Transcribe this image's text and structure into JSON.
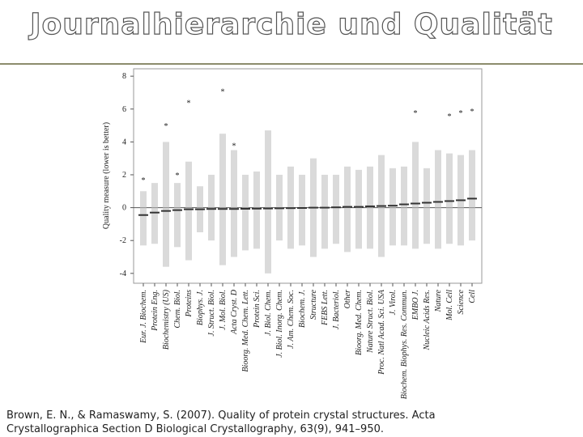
{
  "title": "Journalhierarchie und Qualität",
  "caption": [
    "Brown, E. N., & Ramaswamy, S. (2007). Quality of protein crystal structures. Acta",
    "Crystallographica Section D Biological Crystallography, 63(9), 941–950."
  ],
  "chart_data": {
    "type": "strip",
    "y_label": "Quality measure (lower is better)",
    "categories": [
      "Eur. J. Biochem.",
      "Protein Eng.",
      "Biochemistry (US)",
      "Chem. Biol.",
      "Proteins",
      "Biophys. J.",
      "J. Struct. Biol.",
      "J. Mol. Biol.",
      "Acta Cryst. D",
      "Bioorg. Med. Chem. Lett.",
      "Protein Sci.",
      "J. Biol. Chem.",
      "J. Biol. Inorg. Chem.",
      "J. Am. Chem. Soc.",
      "Biochem. J.",
      "Structure",
      "FEBS Lett.",
      "J. Bacteriol.",
      "Other",
      "Bioorg. Med. Chem.",
      "Nature Struct. Biol.",
      "Proc. Natl Acad. Sci. USA",
      "J. Virol.",
      "Biochem. Biophys. Res. Commun.",
      "EMBO J.",
      "Nucleic Acids Res.",
      "Nature",
      "Mol. Cell",
      "Science",
      "Cell"
    ],
    "values": [
      -0.45,
      -0.3,
      -0.2,
      -0.15,
      -0.1,
      -0.1,
      -0.08,
      -0.08,
      -0.08,
      -0.07,
      -0.06,
      -0.05,
      -0.04,
      -0.03,
      -0.02,
      0,
      0,
      0.02,
      0.05,
      0.05,
      0.08,
      0.1,
      0.12,
      0.2,
      0.25,
      0.3,
      0.35,
      0.4,
      0.45,
      0.55
    ],
    "low": [
      -2.3,
      -2.2,
      -3.6,
      -2.4,
      -3.2,
      -1.5,
      -2,
      -3.5,
      -3,
      -2.6,
      -2.5,
      -4,
      -2,
      -2.5,
      -2.3,
      -3,
      -2.5,
      -2.2,
      -2.7,
      -2.5,
      -2.5,
      -3,
      -2.3,
      -2.3,
      -2.5,
      -2.2,
      -2.5,
      -2.2,
      -2.3,
      -2
    ],
    "high": [
      1,
      1.5,
      4,
      1.5,
      2.8,
      1.3,
      2,
      4.5,
      3.5,
      2,
      2.2,
      4.7,
      2,
      2.5,
      2,
      3,
      2,
      2,
      2.5,
      2.3,
      2.5,
      3.2,
      2.4,
      2.5,
      4,
      2.4,
      3.5,
      3.3,
      3.2,
      3.5
    ],
    "outliers": [
      1.7,
      null,
      5,
      2,
      6.4,
      null,
      null,
      7.1,
      3.8,
      null,
      null,
      null,
      null,
      null,
      null,
      null,
      null,
      null,
      null,
      null,
      null,
      null,
      null,
      null,
      5.8,
      null,
      null,
      5.6,
      5.8,
      5.9
    ],
    "color": "#333333",
    "ylim": [
      -4.6,
      8.45
    ],
    "yticks": [
      -4,
      -2,
      0,
      2,
      4,
      6,
      8
    ]
  }
}
